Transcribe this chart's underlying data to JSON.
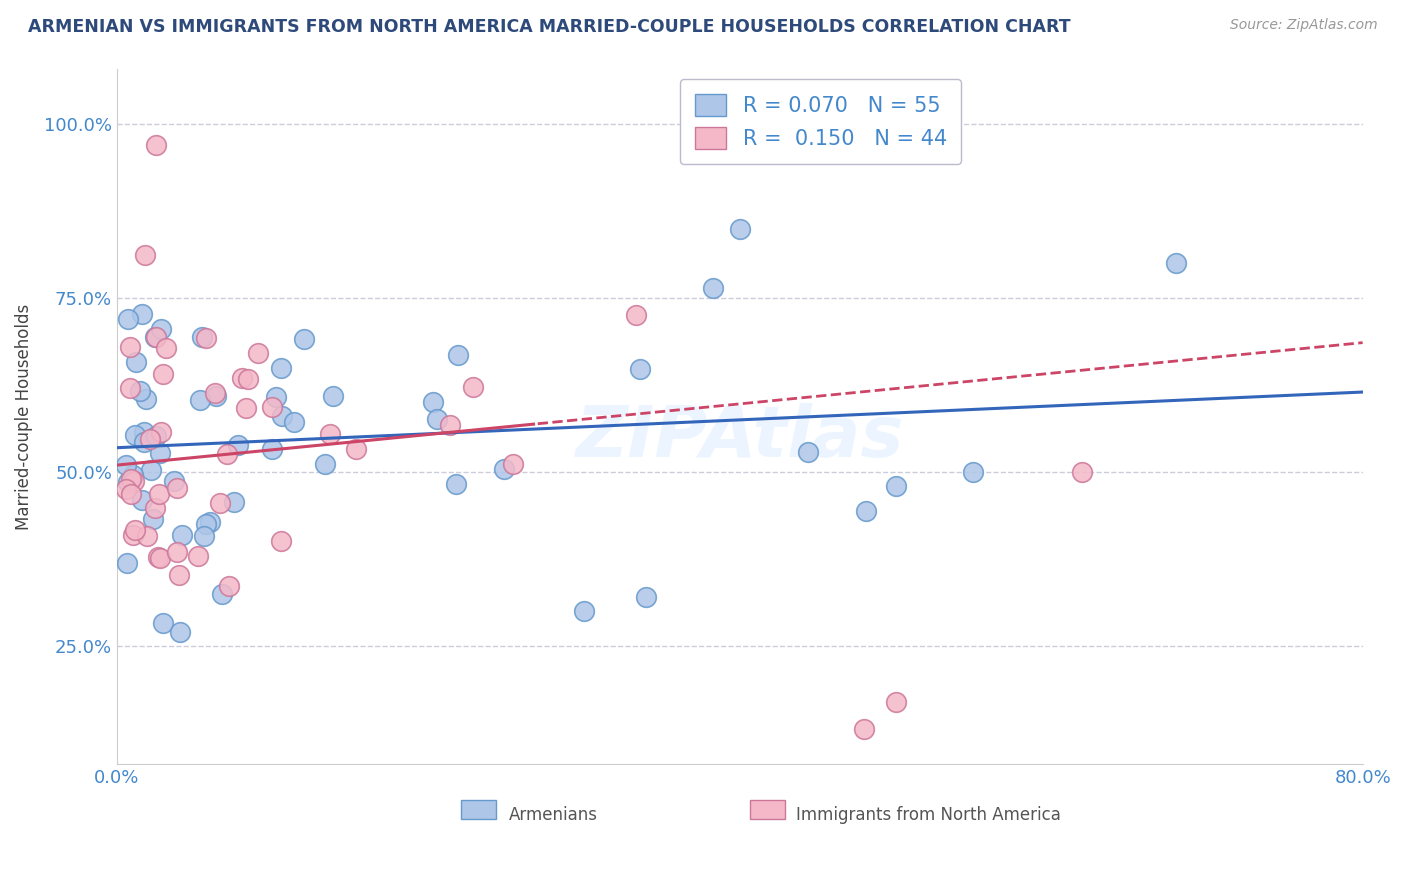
{
  "title": "ARMENIAN VS IMMIGRANTS FROM NORTH AMERICA MARRIED-COUPLE HOUSEHOLDS CORRELATION CHART",
  "source": "Source: ZipAtlas.com",
  "ylabel": "Married-couple Households",
  "xmin": 0.0,
  "xmax": 0.8,
  "ymin": 0.08,
  "ymax": 1.08,
  "xticks": [
    0.0,
    0.1,
    0.2,
    0.3,
    0.4,
    0.5,
    0.6,
    0.7,
    0.8
  ],
  "xticklabels": [
    "0.0%",
    "",
    "",
    "",
    "",
    "",
    "",
    "",
    "80.0%"
  ],
  "yticks": [
    0.25,
    0.5,
    0.75,
    1.0
  ],
  "yticklabels": [
    "25.0%",
    "50.0%",
    "75.0%",
    "100.0%"
  ],
  "blue_color": "#aec6e8",
  "blue_edge_color": "#6699cc",
  "pink_color": "#f4b8c8",
  "pink_edge_color": "#cc7799",
  "trend_blue": "#3366bb",
  "trend_pink": "#cc4466",
  "R_blue": 0.07,
  "N_blue": 55,
  "R_pink": 0.15,
  "N_pink": 44,
  "legend_label_blue": "Armenians",
  "legend_label_pink": "Immigrants from North America",
  "watermark": "ZIPAtlas",
  "title_color": "#2E4A7A",
  "axis_color": "#4488CC",
  "grid_color": "#ccccdd",
  "blue_trend_intercept": 0.535,
  "blue_trend_slope": 0.1,
  "pink_trend_intercept": 0.51,
  "pink_trend_slope": 0.22
}
